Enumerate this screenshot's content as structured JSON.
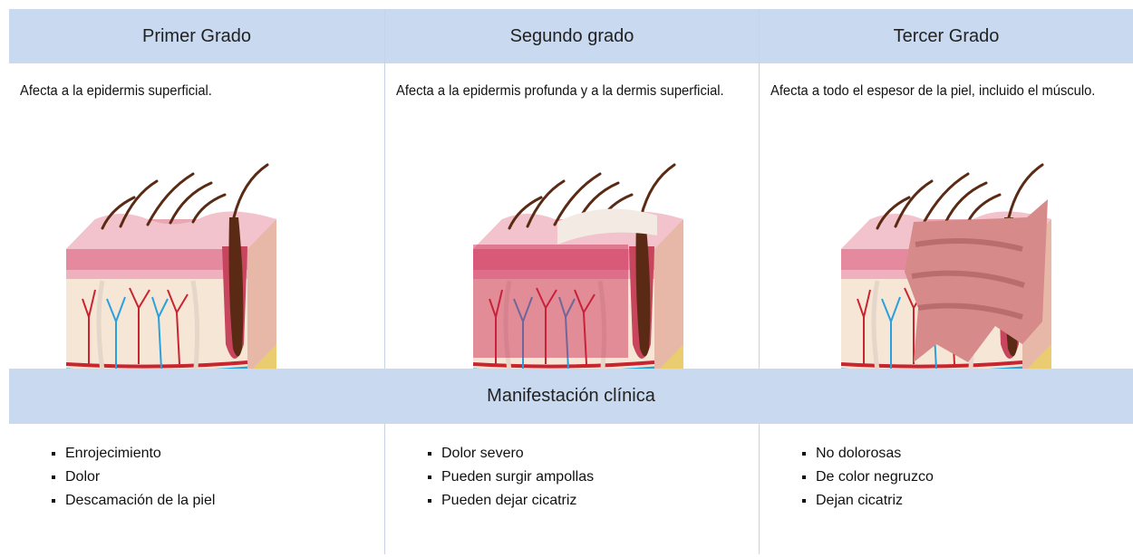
{
  "table": {
    "columns": [
      "Primer Grado",
      "Segundo grado",
      "Tercer Grado"
    ],
    "descriptions": [
      "Afecta a la epidermis superficial.",
      "Afecta a la epidermis profunda y a la dermis superficial.",
      "Afecta a todo el espesor de la piel, incluido el músculo."
    ],
    "section_title": "Manifestación clínica",
    "manifestations": [
      [
        "Enrojecimiento",
        "Dolor",
        "Descamación de la piel"
      ],
      [
        "Dolor severo",
        "Pueden surgir ampollas",
        "Pueden dejar cicatriz"
      ],
      [
        "No dolorosas",
        "De color negruzco",
        "Dejan cicatriz"
      ]
    ]
  }
}
